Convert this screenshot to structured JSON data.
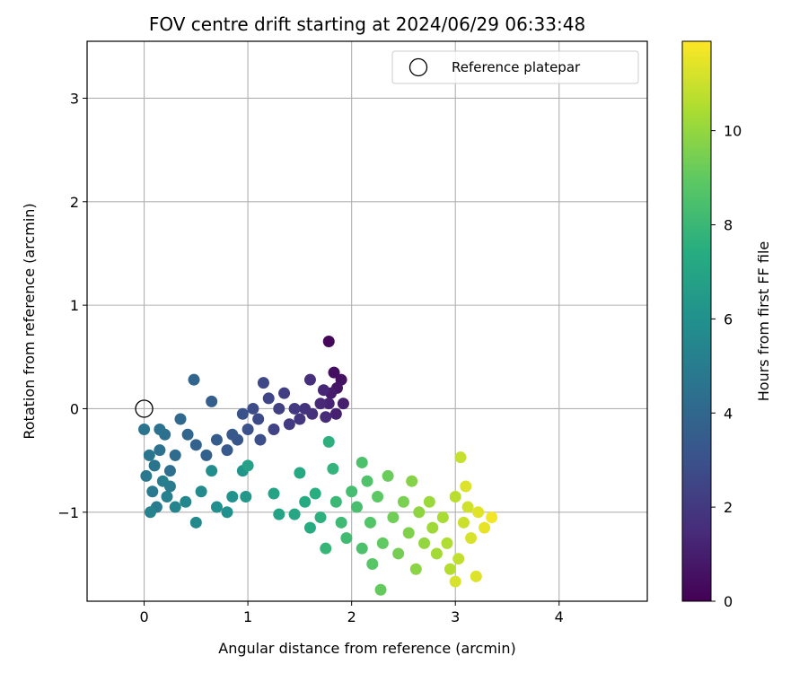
{
  "chart_data": {
    "type": "scatter",
    "title": "FOV centre drift starting at 2024/06/29 06:33:48",
    "xlabel": "Angular distance from reference (arcmin)",
    "ylabel": "Rotation from reference (arcmin)",
    "xlim": [
      -0.55,
      4.85
    ],
    "ylim": [
      -1.86,
      3.55
    ],
    "xticks": [
      0,
      1,
      2,
      3,
      4
    ],
    "yticks": [
      -1,
      0,
      1,
      2,
      3
    ],
    "grid": true,
    "legend": {
      "placement": "top-right",
      "entries": [
        "Reference platepar"
      ]
    },
    "reference_point": {
      "x": 0,
      "y": 0
    },
    "colorbar": {
      "label": "Hours from first FF file",
      "range": [
        0,
        11.9
      ],
      "ticks": [
        0,
        2,
        4,
        6,
        8,
        10
      ],
      "colormap": "viridis"
    },
    "points": [
      {
        "x": 1.78,
        "y": 0.65,
        "c": 0.2
      },
      {
        "x": 1.83,
        "y": 0.35,
        "c": 0.5
      },
      {
        "x": 1.9,
        "y": 0.28,
        "c": 0.6
      },
      {
        "x": 1.86,
        "y": 0.2,
        "c": 0.7
      },
      {
        "x": 1.8,
        "y": 0.15,
        "c": 0.9
      },
      {
        "x": 1.92,
        "y": 0.05,
        "c": 1.0
      },
      {
        "x": 1.85,
        "y": -0.05,
        "c": 1.1
      },
      {
        "x": 1.78,
        "y": 0.05,
        "c": 1.2
      },
      {
        "x": 1.73,
        "y": 0.18,
        "c": 1.3
      },
      {
        "x": 1.7,
        "y": 0.05,
        "c": 1.4
      },
      {
        "x": 1.75,
        "y": -0.08,
        "c": 1.5
      },
      {
        "x": 1.6,
        "y": 0.28,
        "c": 1.6
      },
      {
        "x": 1.62,
        "y": -0.05,
        "c": 1.7
      },
      {
        "x": 1.55,
        "y": 0.0,
        "c": 1.8
      },
      {
        "x": 1.5,
        "y": -0.1,
        "c": 1.9
      },
      {
        "x": 1.45,
        "y": 0.0,
        "c": 2.0
      },
      {
        "x": 1.4,
        "y": -0.15,
        "c": 2.1
      },
      {
        "x": 1.35,
        "y": 0.15,
        "c": 2.2
      },
      {
        "x": 1.3,
        "y": 0.0,
        "c": 2.3
      },
      {
        "x": 1.25,
        "y": -0.2,
        "c": 2.4
      },
      {
        "x": 1.2,
        "y": 0.1,
        "c": 2.5
      },
      {
        "x": 1.15,
        "y": 0.25,
        "c": 2.6
      },
      {
        "x": 1.1,
        "y": -0.1,
        "c": 2.7
      },
      {
        "x": 1.05,
        "y": 0.0,
        "c": 2.8
      },
      {
        "x": 1.12,
        "y": -0.3,
        "c": 2.9
      },
      {
        "x": 1.0,
        "y": -0.2,
        "c": 3.0
      },
      {
        "x": 0.95,
        "y": -0.05,
        "c": 3.1
      },
      {
        "x": 0.9,
        "y": -0.3,
        "c": 3.2
      },
      {
        "x": 0.85,
        "y": -0.25,
        "c": 3.3
      },
      {
        "x": 0.8,
        "y": -0.4,
        "c": 3.4
      },
      {
        "x": 0.7,
        "y": -0.3,
        "c": 3.5
      },
      {
        "x": 0.65,
        "y": 0.07,
        "c": 3.6
      },
      {
        "x": 0.6,
        "y": -0.45,
        "c": 3.7
      },
      {
        "x": 0.5,
        "y": -0.35,
        "c": 3.8
      },
      {
        "x": 0.48,
        "y": 0.28,
        "c": 3.9
      },
      {
        "x": 0.42,
        "y": -0.25,
        "c": 4.0
      },
      {
        "x": 0.35,
        "y": -0.1,
        "c": 4.1
      },
      {
        "x": 0.3,
        "y": -0.45,
        "c": 4.2
      },
      {
        "x": 0.25,
        "y": -0.6,
        "c": 4.3
      },
      {
        "x": 0.2,
        "y": -0.25,
        "c": 4.4
      },
      {
        "x": 0.15,
        "y": -0.4,
        "c": 4.5
      },
      {
        "x": 0.1,
        "y": -0.55,
        "c": 4.6
      },
      {
        "x": 0.05,
        "y": -0.45,
        "c": 4.7
      },
      {
        "x": 0.02,
        "y": -0.65,
        "c": 4.8
      },
      {
        "x": 0.08,
        "y": -0.8,
        "c": 4.9
      },
      {
        "x": 0.12,
        "y": -0.95,
        "c": 5.0
      },
      {
        "x": 0.18,
        "y": -0.7,
        "c": 5.1
      },
      {
        "x": 0.22,
        "y": -0.85,
        "c": 5.2
      },
      {
        "x": 0.06,
        "y": -1.0,
        "c": 5.3
      },
      {
        "x": 0.3,
        "y": -0.95,
        "c": 5.4
      },
      {
        "x": 0.4,
        "y": -0.9,
        "c": 5.5
      },
      {
        "x": 0.5,
        "y": -1.1,
        "c": 5.6
      },
      {
        "x": 0.55,
        "y": -0.8,
        "c": 5.7
      },
      {
        "x": 0.65,
        "y": -0.6,
        "c": 5.8
      },
      {
        "x": 0.7,
        "y": -0.95,
        "c": 5.9
      },
      {
        "x": 0.8,
        "y": -1.0,
        "c": 6.0
      },
      {
        "x": 0.85,
        "y": -0.85,
        "c": 6.1
      },
      {
        "x": 0.95,
        "y": -0.6,
        "c": 6.2
      },
      {
        "x": 0.98,
        "y": -0.85,
        "c": 6.3
      },
      {
        "x": 0.0,
        "y": -0.2,
        "c": 4.6
      },
      {
        "x": 0.15,
        "y": -0.2,
        "c": 4.5
      },
      {
        "x": 0.25,
        "y": -0.75,
        "c": 5.0
      },
      {
        "x": 1.0,
        "y": -0.55,
        "c": 6.8
      },
      {
        "x": 1.25,
        "y": -0.82,
        "c": 6.9
      },
      {
        "x": 1.3,
        "y": -1.02,
        "c": 7.0
      },
      {
        "x": 1.45,
        "y": -1.02,
        "c": 7.1
      },
      {
        "x": 1.5,
        "y": -0.62,
        "c": 7.2
      },
      {
        "x": 1.55,
        "y": -0.9,
        "c": 7.3
      },
      {
        "x": 1.6,
        "y": -1.15,
        "c": 7.4
      },
      {
        "x": 1.65,
        "y": -0.82,
        "c": 7.5
      },
      {
        "x": 1.7,
        "y": -1.05,
        "c": 7.6
      },
      {
        "x": 1.78,
        "y": -0.32,
        "c": 7.6
      },
      {
        "x": 1.82,
        "y": -0.58,
        "c": 7.8
      },
      {
        "x": 1.75,
        "y": -1.35,
        "c": 7.9
      },
      {
        "x": 1.85,
        "y": -0.9,
        "c": 8.0
      },
      {
        "x": 1.9,
        "y": -1.1,
        "c": 8.1
      },
      {
        "x": 1.95,
        "y": -1.25,
        "c": 8.2
      },
      {
        "x": 2.0,
        "y": -0.8,
        "c": 8.3
      },
      {
        "x": 2.05,
        "y": -0.95,
        "c": 8.4
      },
      {
        "x": 2.1,
        "y": -1.35,
        "c": 8.5
      },
      {
        "x": 2.1,
        "y": -0.52,
        "c": 8.5
      },
      {
        "x": 2.15,
        "y": -0.7,
        "c": 8.6
      },
      {
        "x": 2.18,
        "y": -1.1,
        "c": 8.7
      },
      {
        "x": 2.2,
        "y": -1.5,
        "c": 8.8
      },
      {
        "x": 2.25,
        "y": -0.85,
        "c": 8.9
      },
      {
        "x": 2.3,
        "y": -1.3,
        "c": 9.0
      },
      {
        "x": 2.28,
        "y": -1.75,
        "c": 9.1
      },
      {
        "x": 2.35,
        "y": -0.65,
        "c": 9.2
      },
      {
        "x": 2.4,
        "y": -1.05,
        "c": 9.3
      },
      {
        "x": 2.45,
        "y": -1.4,
        "c": 9.4
      },
      {
        "x": 2.5,
        "y": -0.9,
        "c": 9.5
      },
      {
        "x": 2.55,
        "y": -1.2,
        "c": 9.6
      },
      {
        "x": 2.58,
        "y": -0.7,
        "c": 9.7
      },
      {
        "x": 2.62,
        "y": -1.55,
        "c": 9.8
      },
      {
        "x": 2.65,
        "y": -1.0,
        "c": 9.9
      },
      {
        "x": 2.7,
        "y": -1.3,
        "c": 10.0
      },
      {
        "x": 2.75,
        "y": -0.9,
        "c": 10.1
      },
      {
        "x": 2.78,
        "y": -1.15,
        "c": 10.2
      },
      {
        "x": 2.82,
        "y": -1.4,
        "c": 10.3
      },
      {
        "x": 2.88,
        "y": -1.05,
        "c": 10.4
      },
      {
        "x": 2.92,
        "y": -1.3,
        "c": 10.5
      },
      {
        "x": 2.95,
        "y": -1.55,
        "c": 10.6
      },
      {
        "x": 3.0,
        "y": -0.85,
        "c": 10.7
      },
      {
        "x": 3.03,
        "y": -1.45,
        "c": 10.8
      },
      {
        "x": 3.05,
        "y": -0.47,
        "c": 10.9
      },
      {
        "x": 3.08,
        "y": -1.1,
        "c": 11.0
      },
      {
        "x": 3.12,
        "y": -0.95,
        "c": 11.1
      },
      {
        "x": 3.15,
        "y": -1.25,
        "c": 11.2
      },
      {
        "x": 3.2,
        "y": -1.62,
        "c": 11.3
      },
      {
        "x": 3.22,
        "y": -1.0,
        "c": 11.4
      },
      {
        "x": 3.28,
        "y": -1.15,
        "c": 11.5
      },
      {
        "x": 3.35,
        "y": -1.05,
        "c": 11.7
      },
      {
        "x": 3.0,
        "y": -1.67,
        "c": 11.2
      },
      {
        "x": 3.1,
        "y": -0.75,
        "c": 11.3
      }
    ]
  }
}
